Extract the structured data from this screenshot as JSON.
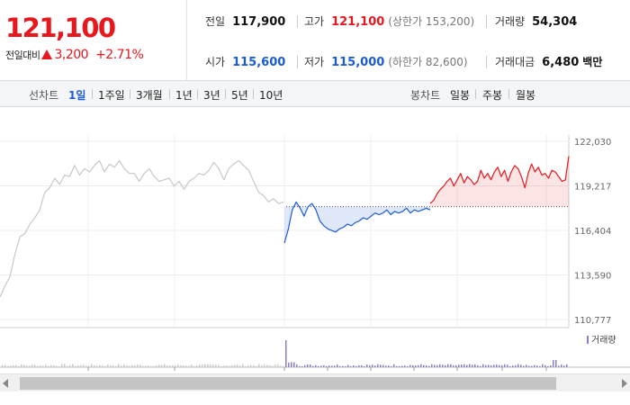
{
  "summary": {
    "current_price": "121,100",
    "change_label": "전일대비",
    "change_amount": "3,200",
    "change_percent": "+2.71%",
    "stats": {
      "prev_close": {
        "label": "전일",
        "value": "117,900"
      },
      "high": {
        "label": "고가",
        "value": "121,100",
        "sub": "(상한가 153,200)"
      },
      "volume": {
        "label": "거래량",
        "value": "54,304"
      },
      "open": {
        "label": "시가",
        "value": "115,600"
      },
      "low": {
        "label": "저가",
        "value": "115,000",
        "sub": "(하한가 82,600)"
      },
      "trade_value": {
        "label": "거래대금",
        "value": "6,480",
        "unit": "백만"
      }
    }
  },
  "line_chart_tabs": {
    "label": "선차트",
    "options": [
      "1일",
      "1주일",
      "3개월",
      "1년",
      "3년",
      "5년",
      "10년"
    ],
    "active": "1일"
  },
  "candle_chart_tabs": {
    "label": "봉차트",
    "options": [
      "일봉",
      "주봉",
      "월봉"
    ]
  },
  "colors": {
    "up": "#e8161d",
    "down": "#1a5bd6",
    "prev_day": "#c8c8c8",
    "volume": "#8a7fc9"
  },
  "chart_data": {
    "type": "line",
    "y_ticks": [
      "122,030",
      "119,217",
      "116,404",
      "113,590",
      "110,777"
    ],
    "ylim": [
      110777,
      122030
    ],
    "reference_price": 117900,
    "volume_label": "거래량",
    "series": [
      {
        "values": [
          112200,
          112900,
          113500,
          114900,
          116000,
          116200,
          116800,
          117200,
          117700,
          118800,
          119100,
          119700,
          119300,
          119900,
          119800,
          120500,
          119900,
          120300,
          120100,
          120500,
          120800,
          120100,
          120600,
          120400,
          120800,
          120300,
          120000,
          120000,
          119500,
          120000,
          120300,
          119800,
          119500,
          119600,
          119700,
          119200,
          119500,
          119000,
          119500,
          119700,
          120000,
          119900,
          120200,
          120700,
          120300,
          119600,
          120300,
          120600,
          120800,
          120500,
          120200,
          119500,
          118800,
          118600,
          118200,
          118400,
          118100,
          118200
        ]
      },
      {
        "values": [
          115600,
          116500,
          117700,
          118200,
          117800,
          117300,
          117900,
          118100,
          117700,
          117000,
          116700,
          116500,
          116400,
          116300,
          116500,
          116600,
          116800,
          116700,
          116900,
          117000,
          117200,
          117100,
          117300,
          117500,
          117400,
          117500,
          117700,
          117400,
          117600,
          117500,
          117600,
          117800,
          117500,
          117700,
          117600,
          117700,
          117800,
          117700
        ]
      },
      {
        "values": [
          118100,
          118300,
          118700,
          119000,
          119200,
          119500,
          119700,
          119200,
          119600,
          120000,
          119400,
          119800,
          119600,
          119300,
          119500,
          120200,
          119700,
          120000,
          119600,
          120100,
          120400,
          119800,
          120200,
          119500,
          120100,
          120500,
          120300,
          119800,
          119100,
          120000,
          120600,
          120100,
          120400,
          119900,
          120000,
          119700,
          120200,
          120100,
          119800,
          119500,
          119600,
          121100
        ]
      }
    ]
  }
}
